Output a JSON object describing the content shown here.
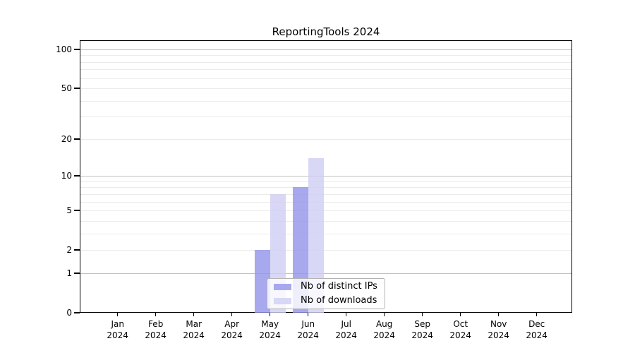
{
  "chart_data": {
    "type": "bar",
    "title": "ReportingTools 2024",
    "categories": [
      "Jan 2024",
      "Feb 2024",
      "Mar 2024",
      "Apr 2024",
      "May 2024",
      "Jun 2024",
      "Jul 2024",
      "Aug 2024",
      "Sep 2024",
      "Oct 2024",
      "Nov 2024",
      "Dec 2024"
    ],
    "x_tick_months": [
      "Jan",
      "Feb",
      "Mar",
      "Apr",
      "May",
      "Jun",
      "Jul",
      "Aug",
      "Sep",
      "Oct",
      "Nov",
      "Dec"
    ],
    "x_tick_year": "2024",
    "series": [
      {
        "name": "Nb of distinct IPs",
        "color": "rgba(146,146,235,0.8)",
        "values": [
          null,
          null,
          null,
          null,
          2,
          8,
          null,
          null,
          null,
          null,
          null,
          null
        ]
      },
      {
        "name": "Nb of downloads",
        "color": "rgba(206,206,244,0.8)",
        "values": [
          null,
          null,
          null,
          null,
          7,
          14,
          null,
          null,
          null,
          null,
          null,
          null
        ]
      }
    ],
    "y_axis": {
      "scale": "log1p",
      "range": [
        0,
        116
      ],
      "tick_values": [
        0,
        1,
        2,
        5,
        10,
        20,
        50,
        100
      ],
      "tick_labels": [
        "0",
        "1",
        "2",
        "5",
        "10",
        "20",
        "50",
        "100"
      ],
      "major_gridlines": [
        1,
        10,
        100
      ],
      "minor_gridlines": [
        2,
        3,
        4,
        5,
        6,
        7,
        8,
        9,
        20,
        30,
        40,
        50,
        60,
        70,
        80,
        90
      ]
    },
    "grid": true,
    "legend": {
      "position": "lower center",
      "labels": [
        "Nb of distinct IPs",
        "Nb of downloads"
      ]
    },
    "colors": {
      "background": "#ffffff",
      "spine": "#000000",
      "major_grid": "#c0c0c0",
      "minor_grid": "#ebebeb",
      "bar_distinct_ips": "rgba(146,146,235,0.8)",
      "bar_downloads": "rgba(206,206,244,0.8)"
    }
  }
}
